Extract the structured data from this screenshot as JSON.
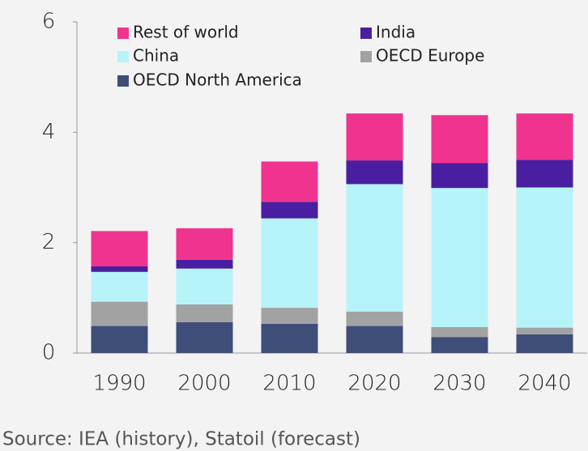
{
  "chart_data": {
    "type": "stacked_bar",
    "categories": [
      "1990",
      "2000",
      "2010",
      "2020",
      "2030",
      "2040"
    ],
    "series": [
      {
        "name": "OECD North America",
        "color": "#3f4e78",
        "values": [
          0.49,
          0.56,
          0.53,
          0.49,
          0.29,
          0.34
        ]
      },
      {
        "name": "OECD Europe",
        "color": "#a2a2a2",
        "values": [
          0.44,
          0.32,
          0.29,
          0.26,
          0.18,
          0.12
        ]
      },
      {
        "name": "China",
        "color": "#b6f4fa",
        "values": [
          0.54,
          0.65,
          1.62,
          2.31,
          2.52,
          2.54
        ]
      },
      {
        "name": "India",
        "color": "#4a1ea0",
        "values": [
          0.1,
          0.16,
          0.3,
          0.43,
          0.45,
          0.5
        ]
      },
      {
        "name": "Rest of world",
        "color": "#f0338f",
        "values": [
          0.64,
          0.57,
          0.73,
          0.85,
          0.87,
          0.84
        ]
      }
    ],
    "ylim": [
      0,
      6
    ],
    "yticks": [
      0,
      2,
      4,
      6
    ],
    "source": "Source: IEA (history), Statoil (forecast)"
  }
}
